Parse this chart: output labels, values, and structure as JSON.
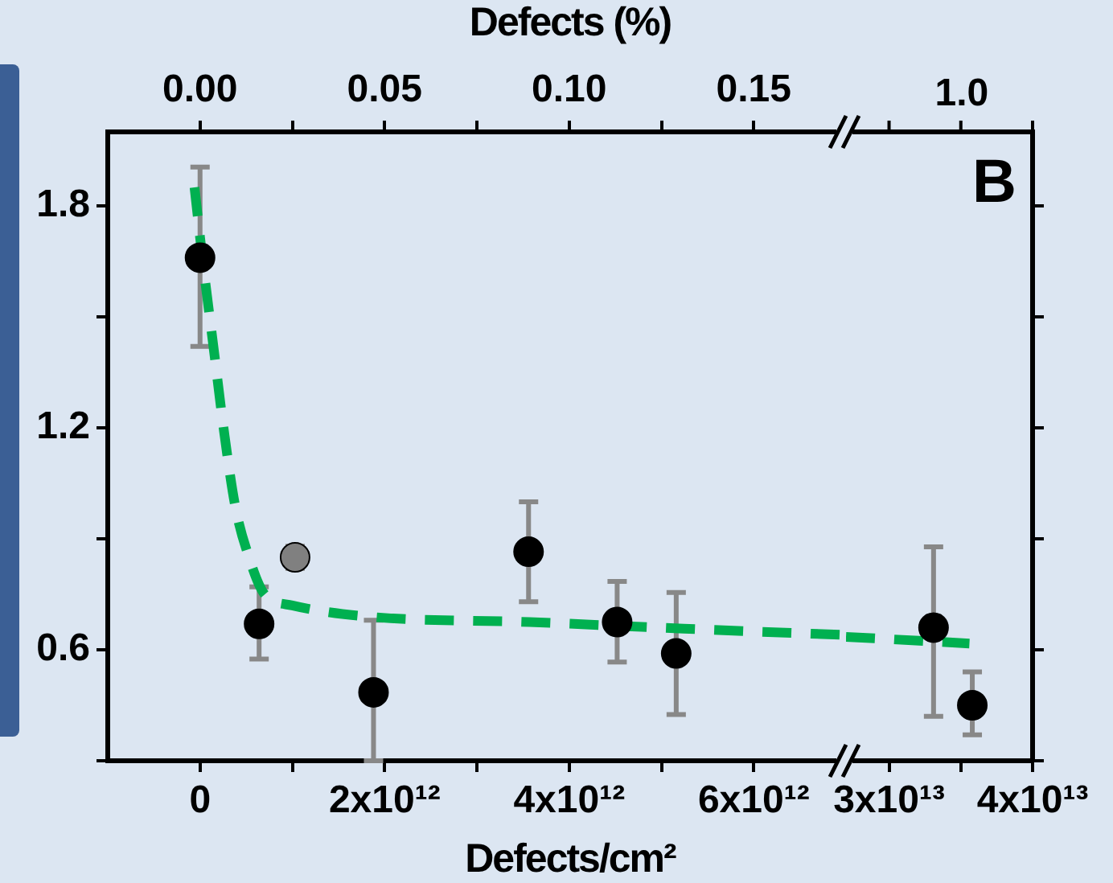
{
  "chart_data": [
    {
      "type": "scatter",
      "xlabel": "Defects/cm²",
      "x2label": "Defects (%)",
      "xlim": [
        -1000000000000,
        7000000000000
      ],
      "xticks": [
        {
          "value": 0,
          "label": "0"
        },
        {
          "value": 1000000000000,
          "label": null
        },
        {
          "value": 2000000000000,
          "label": "2x10¹²"
        },
        {
          "value": 3000000000000,
          "label": null
        },
        {
          "value": 4000000000000,
          "label": "4x10¹²"
        },
        {
          "value": 5000000000000,
          "label": null
        },
        {
          "value": 6000000000000,
          "label": "6x10¹²"
        }
      ],
      "x2lim": [
        -0.025,
        0.175
      ],
      "x2ticks": [
        {
          "value": 0,
          "label": "0.00"
        },
        {
          "value": 0.025,
          "label": null
        },
        {
          "value": 0.05,
          "label": "0.05"
        },
        {
          "value": 0.075,
          "label": null
        },
        {
          "value": 0.1,
          "label": "0.10"
        },
        {
          "value": 0.125,
          "label": null
        },
        {
          "value": 0.15,
          "label": "0.15"
        }
      ],
      "ylim": [
        0.3,
        2.0
      ],
      "yticks": [
        {
          "value": 0.3,
          "label": null
        },
        {
          "value": 0.6,
          "label": "0.6"
        },
        {
          "value": 0.9,
          "label": null
        },
        {
          "value": 1.2,
          "label": "1.2"
        },
        {
          "value": 1.5,
          "label": null
        },
        {
          "value": 1.8,
          "label": "1.8"
        }
      ],
      "marker": "circle",
      "tick_labels": "xy",
      "series": [
        {
          "type": "line",
          "color": "#00b050",
          "marker": "none",
          "line_style": "dashed",
          "x": [
            -60000000000,
            30000000000,
            150000000000,
            260000000000,
            380000000000,
            530000000000,
            700000000000,
            1000000000000,
            1810000000000,
            3570000000000,
            5240000000000,
            7000000000000
          ],
          "values": [
            1.85,
            1.65,
            1.41,
            1.19,
            0.99,
            0.85,
            0.75,
            0.72,
            0.69,
            0.675,
            0.657,
            0.64
          ]
        },
        {
          "color": "#000000",
          "x": [
            0,
            640000000000,
            1880000000000,
            3560000000000,
            4520000000000,
            5160000000000
          ],
          "values": [
            1.66,
            0.67,
            0.485,
            0.865,
            0.675,
            0.59
          ],
          "errors": [
            [
              1.42,
              1.905
            ],
            [
              0.575,
              0.77
            ],
            [
              0.3,
              0.68
            ],
            [
              0.73,
              1.0
            ],
            [
              0.567,
              0.785
            ],
            [
              0.425,
              0.755
            ]
          ]
        },
        {
          "color": "#808080",
          "x": [
            1030000000000
          ],
          "values": [
            0.85
          ],
          "errors": [
            [
              0.82,
              0.88
            ]
          ]
        }
      ]
    },
    {
      "type": "scatter",
      "xlim": [
        27000000000000,
        40000000000000
      ],
      "xticks": [
        {
          "value": 30000000000000,
          "label": "3x10¹³"
        },
        {
          "value": 35000000000000,
          "label": null
        },
        {
          "value": 40000000000000,
          "label": "4x10¹³"
        }
      ],
      "ylim": [
        0.3,
        2.0
      ],
      "yticks": [
        {
          "value": 0.3,
          "label": null
        },
        {
          "value": 0.6,
          "label": null
        },
        {
          "value": 0.9,
          "label": null
        },
        {
          "value": 1.2,
          "label": null
        },
        {
          "value": 1.5,
          "label": null
        },
        {
          "value": 1.8,
          "label": null
        }
      ],
      "marker": "circle",
      "tick_labels": "x",
      "annotations": [
        "B",
        "1.0"
      ],
      "series": [
        {
          "type": "line",
          "color": "#00b050",
          "marker": "none",
          "line_style": "dashed",
          "x": [
            27000000000000,
            35600000000000
          ],
          "values": [
            0.635,
            0.617
          ]
        },
        {
          "color": "#000000",
          "x": [
            33100000000000,
            35800000000000
          ],
          "values": [
            0.66,
            0.45
          ],
          "errors": [
            [
              0.42,
              0.878
            ],
            [
              0.37,
              0.54
            ]
          ]
        }
      ]
    }
  ]
}
